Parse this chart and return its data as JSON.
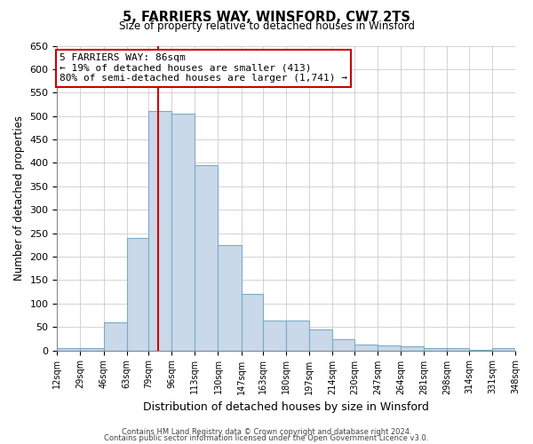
{
  "title": "5, FARRIERS WAY, WINSFORD, CW7 2TS",
  "subtitle": "Size of property relative to detached houses in Winsford",
  "xlabel": "Distribution of detached houses by size in Winsford",
  "ylabel": "Number of detached properties",
  "bin_edges": [
    12,
    29,
    46,
    63,
    79,
    96,
    113,
    130,
    147,
    163,
    180,
    197,
    214,
    230,
    247,
    264,
    281,
    298,
    314,
    331,
    348
  ],
  "counts": [
    5,
    5,
    60,
    240,
    510,
    505,
    395,
    225,
    120,
    63,
    63,
    45,
    23,
    12,
    10,
    8,
    5,
    5,
    2,
    5
  ],
  "bar_color": "#c9d9ea",
  "bar_edge_color": "#7aaac8",
  "vline_x": 86,
  "vline_color": "#cc0000",
  "annotation_box_text": "5 FARRIERS WAY: 86sqm\n← 19% of detached houses are smaller (413)\n80% of semi-detached houses are larger (1,741) →",
  "annotation_box_edge_color": "#cc0000",
  "ylim": [
    0,
    650
  ],
  "yticks": [
    0,
    50,
    100,
    150,
    200,
    250,
    300,
    350,
    400,
    450,
    500,
    550,
    600,
    650
  ],
  "footer_line1": "Contains HM Land Registry data © Crown copyright and database right 2024.",
  "footer_line2": "Contains public sector information licensed under the Open Government Licence v3.0.",
  "bg_color": "#ffffff",
  "grid_color": "#cccccc",
  "tick_labels": [
    "12sqm",
    "29sqm",
    "46sqm",
    "63sqm",
    "79sqm",
    "96sqm",
    "113sqm",
    "130sqm",
    "147sqm",
    "163sqm",
    "180sqm",
    "197sqm",
    "214sqm",
    "230sqm",
    "247sqm",
    "264sqm",
    "281sqm",
    "298sqm",
    "314sqm",
    "331sqm",
    "348sqm"
  ]
}
